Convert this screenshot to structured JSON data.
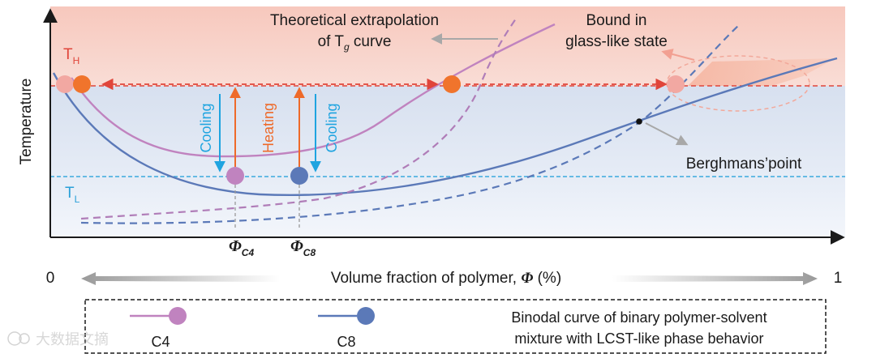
{
  "colors": {
    "c4": "#c083bf",
    "c8": "#5b79b8",
    "th_line": "#e0453a",
    "tl_line": "#3aa9dd",
    "heating": "#ee6a2a",
    "cooling": "#1fa4e0",
    "hot_fill": "#f8cfc6",
    "cold_fill": "#e9eef8",
    "dot_orange": "#f0742c",
    "dot_pink": "#f2a8a2",
    "gray_arrow": "#a8a8a8"
  },
  "axes": {
    "y_label": "Temperature",
    "x_label_prefix": "Volume fraction of  polymer, ",
    "x_label_symbol": "Φ",
    "x_label_suffix": " (%)",
    "x_min": "0",
    "x_max": "1"
  },
  "labels": {
    "th_main": "T",
    "th_sub": "H",
    "tl_main": "T",
    "tl_sub": "L",
    "cooling_left": "Cooling",
    "heating": "Heating",
    "cooling_right": "Cooling",
    "phi_c4_main": "Φ",
    "phi_c4_sub": "C4",
    "phi_c8_main": "Φ",
    "phi_c8_sub": "C8",
    "theory_line1": "Theoretical extrapolation",
    "theory_line2_pre": "of T",
    "theory_line2_sub": "g",
    "theory_line2_post": " curve",
    "bound_line1": "Bound in",
    "bound_line2": "glass-like state",
    "berghmans": "Berghmans’point"
  },
  "legend": {
    "c4_label": "C4",
    "c8_label": "C8",
    "description_line1": "Binodal curve of binary polymer-solvent",
    "description_line2": "mixture with LCST-like phase behavior"
  },
  "watermark": "大数据文摘"
}
